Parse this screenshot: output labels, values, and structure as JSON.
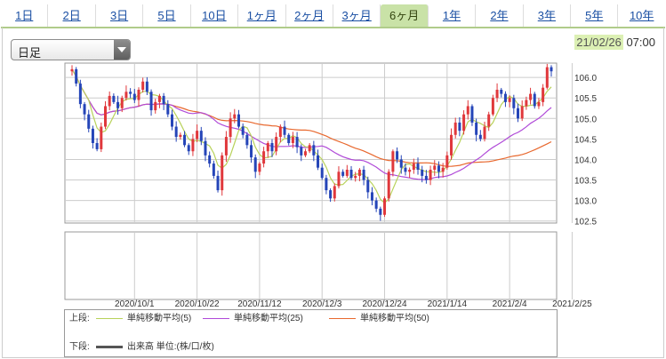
{
  "tabs": [
    {
      "label": "1日"
    },
    {
      "label": "2日"
    },
    {
      "label": "3日"
    },
    {
      "label": "5日"
    },
    {
      "label": "10日"
    },
    {
      "label": "1ヶ月"
    },
    {
      "label": "2ヶ月"
    },
    {
      "label": "3ヶ月"
    },
    {
      "label": "6ヶ月",
      "active": true
    },
    {
      "label": "1年"
    },
    {
      "label": "2年"
    },
    {
      "label": "3年"
    },
    {
      "label": "5年"
    },
    {
      "label": "10年"
    }
  ],
  "chart_type_select": {
    "value": "日足"
  },
  "timestamp": {
    "date": "21/02/26",
    "time": "07:00"
  },
  "colors": {
    "up": "#e0383c",
    "down": "#2545b8",
    "ma5": "#b8d25a",
    "ma25": "#b04ad8",
    "ma50": "#e8682e",
    "grid": "#cccccc",
    "selected_tab": "#c9e2a7"
  },
  "legend": {
    "upper_label": "上段:",
    "lower_label": "下段:",
    "ma5": "単純移動平均(5)",
    "ma25": "単純移動平均(25)",
    "ma50": "単純移動平均(50)",
    "volume": "出来高 単位:(株/口/枚)"
  },
  "chart_data": {
    "type": "candlestick",
    "y_ticks": [
      "106.0",
      "105.5",
      "105.0",
      "104.5",
      "104.0",
      "103.5",
      "103.0",
      "102.5"
    ],
    "y_tick_values": [
      106.0,
      105.5,
      105.0,
      104.5,
      104.0,
      103.5,
      103.0,
      102.5
    ],
    "ylim": [
      102.45,
      106.35
    ],
    "x_tick_labels": [
      "2020/10/1",
      "2020/10/22",
      "2020/11/12",
      "2020/12/3",
      "2020/12/24",
      "2021/1/14",
      "2021/2/4",
      "2021/2/25"
    ],
    "x_tick_index": [
      15,
      30,
      45,
      60,
      75,
      90,
      105,
      120
    ],
    "close": [
      106.2,
      105.85,
      105.35,
      105.1,
      104.75,
      104.4,
      104.25,
      104.8,
      105.3,
      105.55,
      105.4,
      105.25,
      105.5,
      105.65,
      105.6,
      105.45,
      105.7,
      105.9,
      105.65,
      105.2,
      105.4,
      105.55,
      105.35,
      105.1,
      104.8,
      104.55,
      104.6,
      104.35,
      104.2,
      104.5,
      104.7,
      104.45,
      104.1,
      103.9,
      103.6,
      103.25,
      104.1,
      104.55,
      105.0,
      105.1,
      104.8,
      104.6,
      104.35,
      104.05,
      103.7,
      103.9,
      104.2,
      104.4,
      104.2,
      104.55,
      104.8,
      104.6,
      104.4,
      104.55,
      104.3,
      104.1,
      104.2,
      104.35,
      104.1,
      103.8,
      103.55,
      103.25,
      103.05,
      103.35,
      103.7,
      103.6,
      103.75,
      103.55,
      103.6,
      103.75,
      103.5,
      103.2,
      103.0,
      102.8,
      102.65,
      103.05,
      103.7,
      104.2,
      104.0,
      103.8,
      103.7,
      103.75,
      103.9,
      103.75,
      103.6,
      103.5,
      103.75,
      103.85,
      103.7,
      103.8,
      104.1,
      104.6,
      104.9,
      104.7,
      105.1,
      105.3,
      104.9,
      104.6,
      104.5,
      104.8,
      105.1,
      105.5,
      105.7,
      105.6,
      105.4,
      105.5,
      105.25,
      105.0,
      105.3,
      105.45,
      105.6,
      105.3,
      105.4,
      105.75,
      106.25,
      106.15
    ]
  }
}
